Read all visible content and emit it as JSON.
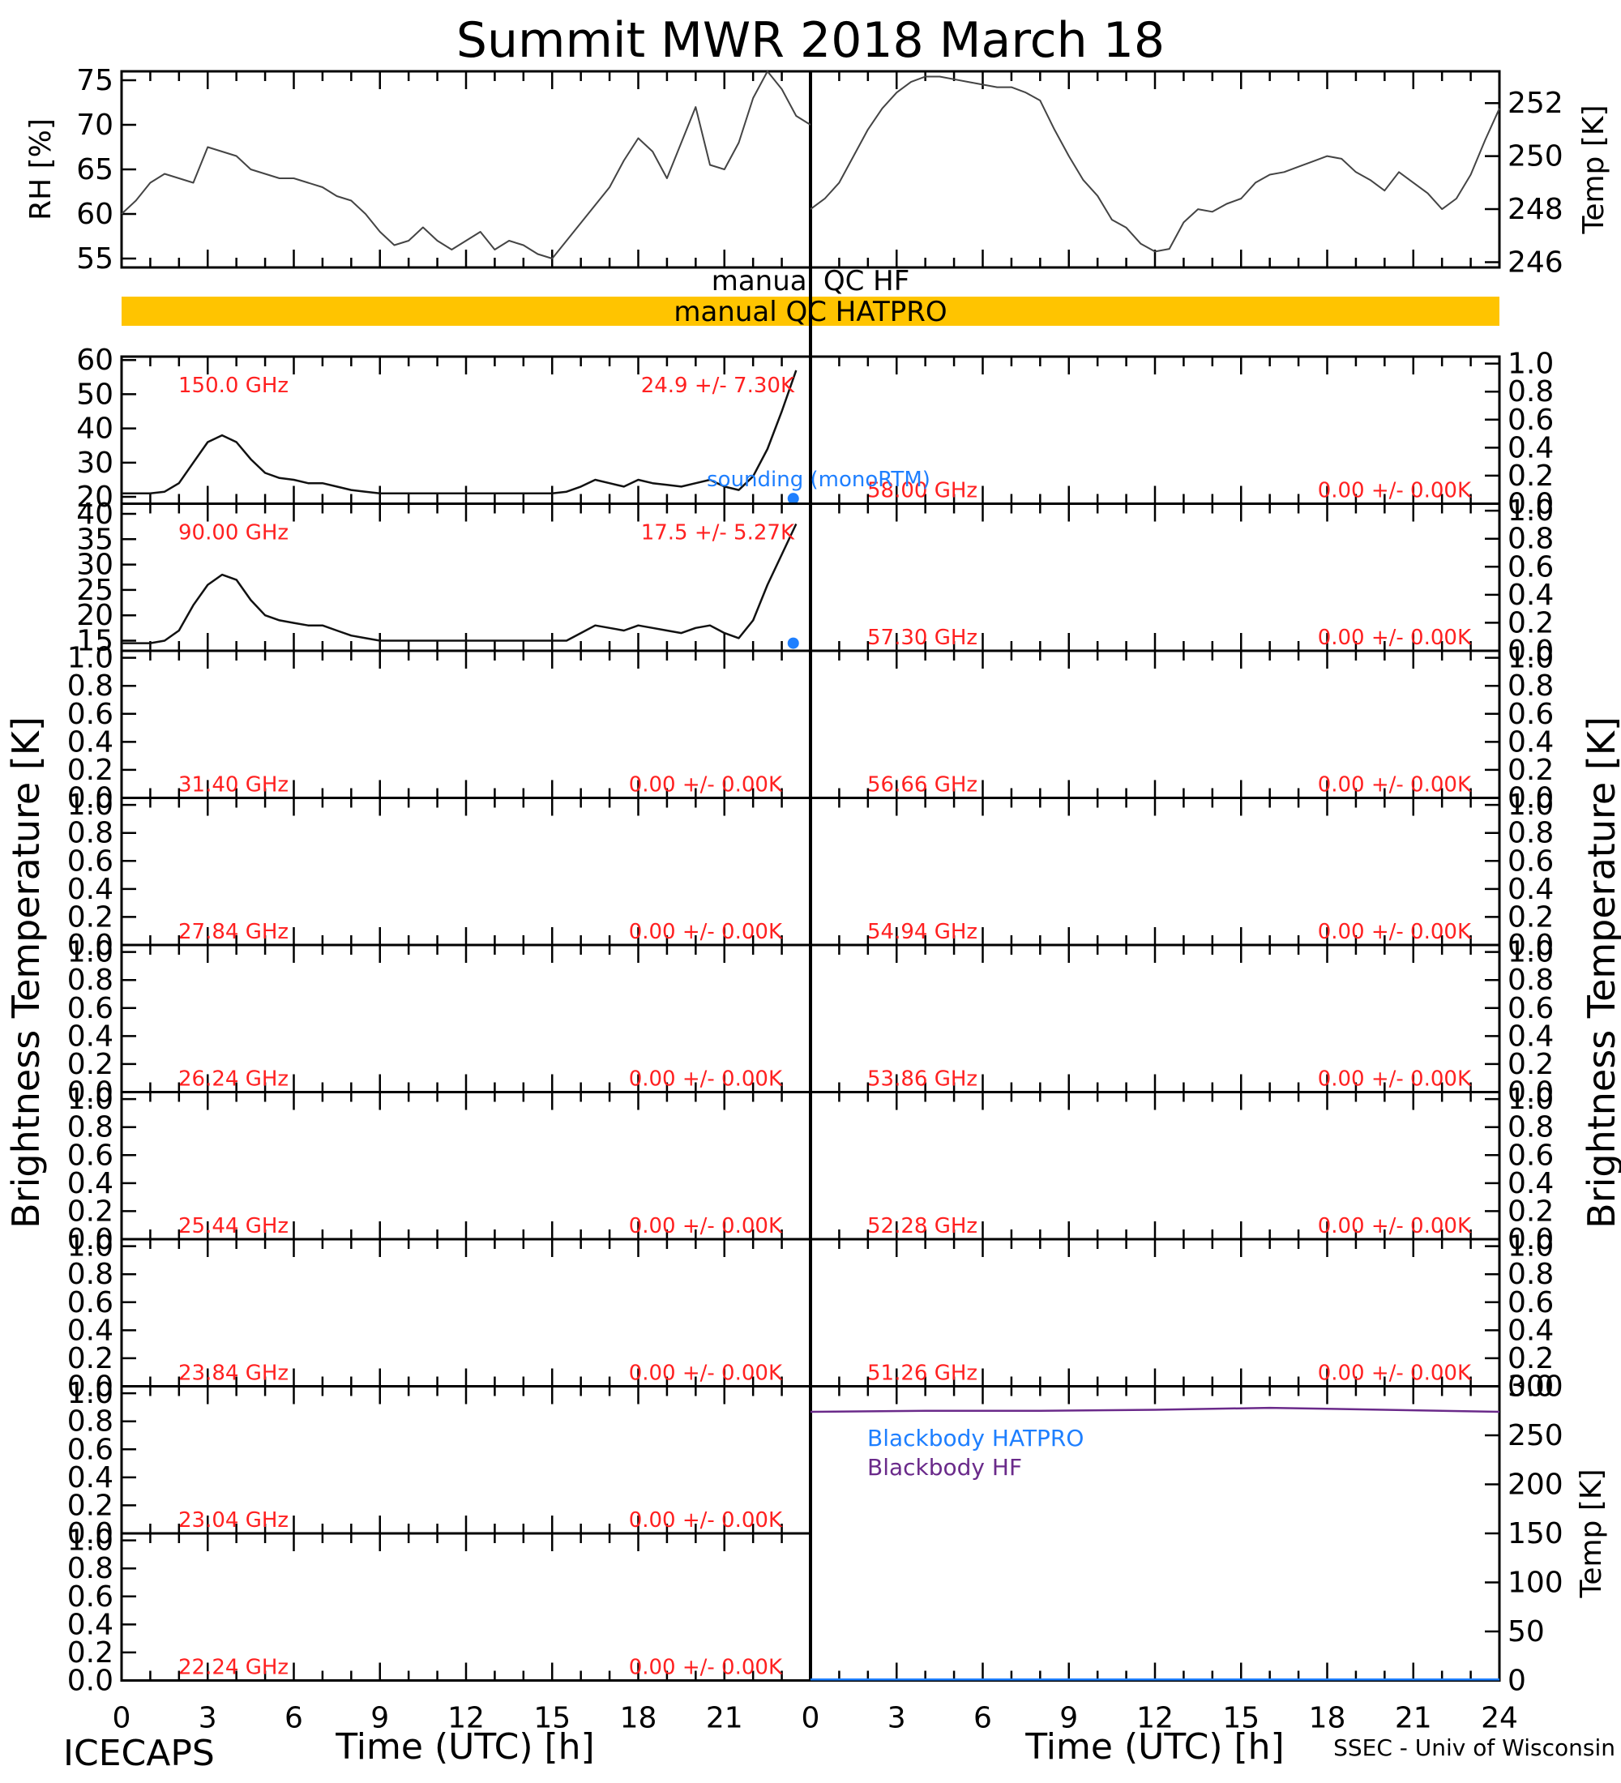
{
  "title": "Summit MWR 2018 March 18",
  "footer": {
    "left": "ICECAPS",
    "right": "SSEC - Univ of Wisconsin"
  },
  "x_axis": {
    "label": "Time (UTC) [h]",
    "left_ticks": [
      "0",
      "3",
      "6",
      "9",
      "12",
      "15",
      "18",
      "21"
    ],
    "right_ticks": [
      "0",
      "3",
      "6",
      "9",
      "12",
      "15",
      "18",
      "21",
      "24"
    ]
  },
  "side_labels": {
    "left": "Brightness Temperature [K]",
    "right": "Brightness Temperature [K]"
  },
  "colors": {
    "qc_bar": "#ffc400",
    "sounding": "#1e7fff",
    "blackbody_hatpro": "#1e7fff",
    "blackbody_hf": "#6a2a8a",
    "channel_text": "#ff2020"
  },
  "qc": {
    "hf_label": "manual QC HF",
    "hatpro_label": "manual QC HATPRO"
  },
  "legends": {
    "sounding": "sounding (monoRTM)",
    "bb_hatpro": "Blackbody HATPRO",
    "bb_hf": "Blackbody HF"
  },
  "chart_data": [
    {
      "type": "line",
      "panel": "rh",
      "ylabel": "RH [%]",
      "ylim": [
        54,
        76
      ],
      "yticks": [
        "55",
        "60",
        "65",
        "70",
        "75"
      ],
      "x": [
        0,
        0.5,
        1,
        1.5,
        2,
        2.5,
        3,
        3.5,
        4,
        4.5,
        5,
        5.5,
        6,
        6.5,
        7,
        7.5,
        8,
        8.5,
        9,
        9.5,
        10,
        10.5,
        11,
        11.5,
        12,
        12.5,
        13,
        13.5,
        14,
        14.5,
        15,
        15.5,
        16,
        16.5,
        17,
        17.5,
        18,
        18.5,
        19,
        19.5,
        20,
        20.5,
        21,
        21.5,
        22,
        22.5,
        23,
        23.5,
        24
      ],
      "values": [
        60,
        61.5,
        63.5,
        64.5,
        64,
        63.5,
        67.5,
        67,
        66.5,
        65,
        64.5,
        64,
        64,
        63.5,
        63,
        62,
        61.5,
        60,
        58,
        56.5,
        57,
        58.5,
        57,
        56,
        57,
        58,
        56,
        57,
        56.5,
        55.5,
        55,
        57,
        59,
        61,
        63,
        66,
        68.5,
        67,
        64,
        68,
        72,
        65.5,
        65,
        68,
        73,
        76,
        74,
        71,
        70
      ]
    },
    {
      "type": "line",
      "panel": "temp",
      "ylabel": "Temp [K]",
      "ylim": [
        245.8,
        253.2
      ],
      "yticks": [
        "246",
        "248",
        "250",
        "252"
      ],
      "x": [
        0,
        0.5,
        1,
        1.5,
        2,
        2.5,
        3,
        3.5,
        4,
        4.5,
        5,
        5.5,
        6,
        6.5,
        7,
        7.5,
        8,
        8.5,
        9,
        9.5,
        10,
        10.5,
        11,
        11.5,
        12,
        12.5,
        13,
        13.5,
        14,
        14.5,
        15,
        15.5,
        16,
        16.5,
        17,
        17.5,
        18,
        18.5,
        19,
        19.5,
        20,
        20.5,
        21,
        21.5,
        22,
        22.5,
        23,
        23.5,
        24
      ],
      "values": [
        248,
        248.4,
        249,
        250,
        251,
        251.8,
        252.4,
        252.8,
        253,
        253,
        252.9,
        252.8,
        252.7,
        252.6,
        252.6,
        252.4,
        252.1,
        251,
        250,
        249.1,
        248.5,
        247.6,
        247.3,
        246.7,
        246.4,
        246.5,
        247.5,
        248,
        247.9,
        248.2,
        248.4,
        249,
        249.3,
        249.4,
        249.6,
        249.8,
        250,
        249.9,
        249.4,
        249.1,
        248.7,
        249.4,
        249,
        248.6,
        248,
        248.4,
        249.3,
        250.6,
        251.8
      ]
    },
    {
      "type": "line",
      "panel": "ch150",
      "channel": "150.0 GHz",
      "stats": "24.9 +/-  7.30K",
      "ylim": [
        18,
        61
      ],
      "yticks": [
        "20",
        "30",
        "40",
        "50",
        "60"
      ],
      "x": [
        0,
        0.5,
        1,
        1.5,
        2,
        2.5,
        3,
        3.5,
        4,
        4.5,
        5,
        5.5,
        6,
        6.5,
        7,
        7.5,
        8,
        8.5,
        9,
        9.5,
        10,
        10.5,
        11,
        11.5,
        12,
        12.5,
        13,
        13.5,
        14,
        14.5,
        15,
        15.5,
        16,
        16.5,
        17,
        17.5,
        18,
        18.5,
        19,
        19.5,
        20,
        20.5,
        21,
        21.5,
        22,
        22.5,
        23,
        23.5
      ],
      "values": [
        21,
        21,
        21,
        21.5,
        24,
        30,
        36,
        38,
        36,
        31,
        27,
        25.5,
        25,
        24,
        24,
        23,
        22,
        21.5,
        21,
        21,
        21,
        21,
        21,
        21,
        21,
        21,
        21,
        21,
        21,
        21,
        21,
        21.5,
        23,
        25,
        24,
        23,
        25,
        24,
        23.5,
        23,
        24,
        25,
        23,
        22,
        26,
        34,
        45,
        57
      ],
      "sounding_x": [
        23.4
      ],
      "sounding_values": [
        19.5
      ]
    },
    {
      "type": "line",
      "panel": "ch90",
      "channel": "90.00 GHz",
      "stats": "17.5 +/-  5.27K",
      "ylim": [
        13,
        42
      ],
      "yticks": [
        "15",
        "20",
        "25",
        "30",
        "35",
        "40"
      ],
      "x": [
        0,
        0.5,
        1,
        1.5,
        2,
        2.5,
        3,
        3.5,
        4,
        4.5,
        5,
        5.5,
        6,
        6.5,
        7,
        7.5,
        8,
        8.5,
        9,
        9.5,
        10,
        10.5,
        11,
        11.5,
        12,
        12.5,
        13,
        13.5,
        14,
        14.5,
        15,
        15.5,
        16,
        16.5,
        17,
        17.5,
        18,
        18.5,
        19,
        19.5,
        20,
        20.5,
        21,
        21.5,
        22,
        22.5,
        23,
        23.5
      ],
      "values": [
        14.5,
        14.5,
        14.5,
        15,
        17,
        22,
        26,
        28,
        27,
        23,
        20,
        19,
        18.5,
        18,
        18,
        17,
        16,
        15.5,
        15,
        15,
        15,
        15,
        15,
        15,
        15,
        15,
        15,
        15,
        15,
        15,
        15,
        15,
        16.5,
        18,
        17.5,
        17,
        18,
        17.5,
        17,
        16.5,
        17.5,
        18,
        16.5,
        15.5,
        19,
        26,
        32,
        38
      ],
      "sounding_x": [
        23.4
      ],
      "sounding_values": [
        14.5
      ]
    },
    {
      "type": "line",
      "panel": "blackbody",
      "ylabel": "Temp [K]",
      "ylim": [
        0,
        300
      ],
      "yticks": [
        "0",
        "50",
        "100",
        "150",
        "200",
        "250",
        "300"
      ],
      "series": [
        {
          "name": "Blackbody HF",
          "x": [
            0,
            4,
            8,
            12,
            16,
            20,
            24
          ],
          "values": [
            274,
            275,
            275,
            276,
            278,
            276,
            274
          ]
        },
        {
          "name": "Blackbody HATPRO",
          "x": [
            0,
            24
          ],
          "values": [
            1,
            1
          ]
        }
      ]
    }
  ],
  "empty_channels": {
    "left": [
      {
        "channel": "31.40 GHz",
        "stats": "0.00 +/-  0.00K"
      },
      {
        "channel": "27.84 GHz",
        "stats": "0.00 +/-  0.00K"
      },
      {
        "channel": "26.24 GHz",
        "stats": "0.00 +/-  0.00K"
      },
      {
        "channel": "25.44 GHz",
        "stats": "0.00 +/-  0.00K"
      },
      {
        "channel": "23.84 GHz",
        "stats": "0.00 +/-  0.00K"
      },
      {
        "channel": "23.04 GHz",
        "stats": "0.00 +/-  0.00K"
      },
      {
        "channel": "22.24 GHz",
        "stats": "0.00 +/-  0.00K"
      }
    ],
    "right": [
      {
        "channel": "58.00 GHz",
        "stats": "0.00 +/-  0.00K"
      },
      {
        "channel": "57.30 GHz",
        "stats": "0.00 +/-  0.00K"
      },
      {
        "channel": "56.66 GHz",
        "stats": "0.00 +/-  0.00K"
      },
      {
        "channel": "54.94 GHz",
        "stats": "0.00 +/-  0.00K"
      },
      {
        "channel": "53.86 GHz",
        "stats": "0.00 +/-  0.00K"
      },
      {
        "channel": "52.28 GHz",
        "stats": "0.00 +/-  0.00K"
      },
      {
        "channel": "51.26 GHz",
        "stats": "0.00 +/-  0.00K"
      }
    ],
    "yticks": [
      "0.0",
      "0.2",
      "0.4",
      "0.6",
      "0.8",
      "1.0"
    ]
  }
}
